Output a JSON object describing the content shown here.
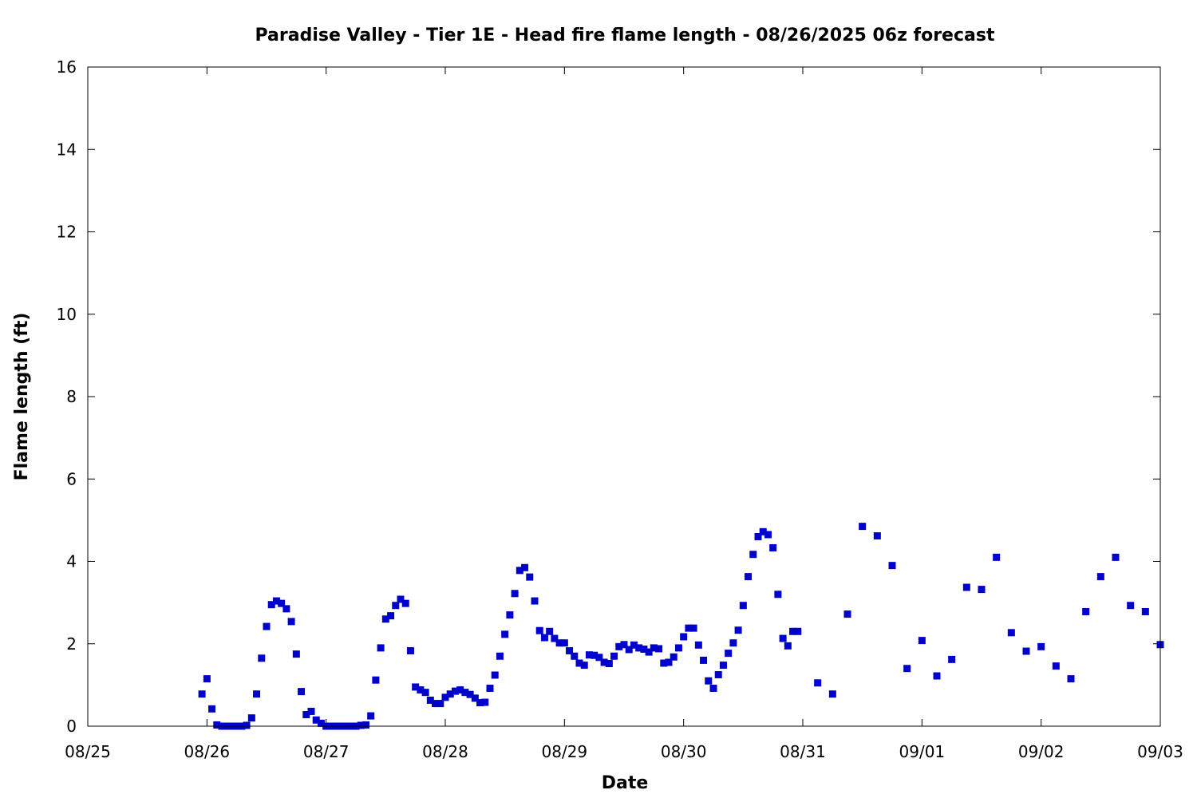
{
  "chart_data": {
    "type": "scatter",
    "title": "Paradise Valley - Tier 1E - Head fire flame length - 08/26/2025 06z forecast",
    "xlabel": "Date",
    "ylabel": "Flame length (ft)",
    "x_unit": "days",
    "xlim": [
      "08/25",
      "09/03"
    ],
    "x_ticks": [
      "08/25",
      "08/26",
      "08/27",
      "08/28",
      "08/29",
      "08/30",
      "08/31",
      "09/01",
      "09/02",
      "09/03"
    ],
    "ylim": [
      0,
      16
    ],
    "y_ticks": [
      "0",
      "2",
      "4",
      "6",
      "8",
      "10",
      "12",
      "14",
      "16"
    ],
    "grid": false,
    "marker_color": "#0000cc",
    "series": [
      {
        "marker": "square",
        "points": [
          [
            "08/25 23:00",
            0.78
          ],
          [
            "08/26 00:00",
            1.15
          ],
          [
            "08/26 01:00",
            0.42
          ],
          [
            "08/26 02:00",
            0.03
          ],
          [
            "08/26 03:00",
            0.0
          ],
          [
            "08/26 04:00",
            0.0
          ],
          [
            "08/26 05:00",
            0.0
          ],
          [
            "08/26 06:00",
            0.0
          ],
          [
            "08/26 07:00",
            0.0
          ],
          [
            "08/26 08:00",
            0.02
          ],
          [
            "08/26 09:00",
            0.2
          ],
          [
            "08/26 10:00",
            0.78
          ],
          [
            "08/26 11:00",
            1.65
          ],
          [
            "08/26 12:00",
            2.42
          ],
          [
            "08/26 13:00",
            2.95
          ],
          [
            "08/26 14:00",
            3.04
          ],
          [
            "08/26 15:00",
            2.98
          ],
          [
            "08/26 16:00",
            2.85
          ],
          [
            "08/26 17:00",
            2.54
          ],
          [
            "08/26 18:00",
            1.75
          ],
          [
            "08/26 19:00",
            0.84
          ],
          [
            "08/26 20:00",
            0.28
          ],
          [
            "08/26 21:00",
            0.36
          ],
          [
            "08/26 22:00",
            0.15
          ],
          [
            "08/26 23:00",
            0.07
          ],
          [
            "08/27 00:00",
            0.0
          ],
          [
            "08/27 01:00",
            0.0
          ],
          [
            "08/27 02:00",
            0.0
          ],
          [
            "08/27 03:00",
            0.0
          ],
          [
            "08/27 04:00",
            0.0
          ],
          [
            "08/27 05:00",
            0.0
          ],
          [
            "08/27 06:00",
            0.0
          ],
          [
            "08/27 07:00",
            0.02
          ],
          [
            "08/27 08:00",
            0.03
          ],
          [
            "08/27 09:00",
            0.25
          ],
          [
            "08/27 10:00",
            1.12
          ],
          [
            "08/27 11:00",
            1.9
          ],
          [
            "08/27 12:00",
            2.6
          ],
          [
            "08/27 13:00",
            2.68
          ],
          [
            "08/27 14:00",
            2.93
          ],
          [
            "08/27 15:00",
            3.08
          ],
          [
            "08/27 16:00",
            2.98
          ],
          [
            "08/27 17:00",
            1.83
          ],
          [
            "08/27 18:00",
            0.95
          ],
          [
            "08/27 19:00",
            0.88
          ],
          [
            "08/27 20:00",
            0.82
          ],
          [
            "08/27 21:00",
            0.63
          ],
          [
            "08/27 22:00",
            0.55
          ],
          [
            "08/27 23:00",
            0.55
          ],
          [
            "08/28 00:00",
            0.7
          ],
          [
            "08/28 01:00",
            0.78
          ],
          [
            "08/28 02:00",
            0.85
          ],
          [
            "08/28 03:00",
            0.88
          ],
          [
            "08/28 04:00",
            0.82
          ],
          [
            "08/28 05:00",
            0.77
          ],
          [
            "08/28 06:00",
            0.68
          ],
          [
            "08/28 07:00",
            0.57
          ],
          [
            "08/28 08:00",
            0.58
          ],
          [
            "08/28 09:00",
            0.92
          ],
          [
            "08/28 10:00",
            1.24
          ],
          [
            "08/28 11:00",
            1.7
          ],
          [
            "08/28 12:00",
            2.23
          ],
          [
            "08/28 13:00",
            2.7
          ],
          [
            "08/28 14:00",
            3.22
          ],
          [
            "08/28 15:00",
            3.78
          ],
          [
            "08/28 16:00",
            3.85
          ],
          [
            "08/28 17:00",
            3.62
          ],
          [
            "08/28 18:00",
            3.04
          ],
          [
            "08/28 19:00",
            2.32
          ],
          [
            "08/28 20:00",
            2.15
          ],
          [
            "08/28 21:00",
            2.3
          ],
          [
            "08/28 22:00",
            2.13
          ],
          [
            "08/28 23:00",
            2.02
          ],
          [
            "08/29 00:00",
            2.02
          ],
          [
            "08/29 01:00",
            1.83
          ],
          [
            "08/29 02:00",
            1.7
          ],
          [
            "08/29 03:00",
            1.53
          ],
          [
            "08/29 04:00",
            1.48
          ],
          [
            "08/29 05:00",
            1.73
          ],
          [
            "08/29 06:00",
            1.72
          ],
          [
            "08/29 07:00",
            1.67
          ],
          [
            "08/29 08:00",
            1.55
          ],
          [
            "08/29 09:00",
            1.52
          ],
          [
            "08/29 10:00",
            1.7
          ],
          [
            "08/29 11:00",
            1.93
          ],
          [
            "08/29 12:00",
            1.98
          ],
          [
            "08/29 13:00",
            1.86
          ],
          [
            "08/29 14:00",
            1.97
          ],
          [
            "08/29 15:00",
            1.9
          ],
          [
            "08/29 16:00",
            1.87
          ],
          [
            "08/29 17:00",
            1.8
          ],
          [
            "08/29 18:00",
            1.9
          ],
          [
            "08/29 19:00",
            1.88
          ],
          [
            "08/29 20:00",
            1.53
          ],
          [
            "08/29 21:00",
            1.55
          ],
          [
            "08/29 22:00",
            1.68
          ],
          [
            "08/29 23:00",
            1.9
          ],
          [
            "08/30 00:00",
            2.17
          ],
          [
            "08/30 01:00",
            2.38
          ],
          [
            "08/30 02:00",
            2.38
          ],
          [
            "08/30 03:00",
            1.97
          ],
          [
            "08/30 04:00",
            1.6
          ],
          [
            "08/30 05:00",
            1.1
          ],
          [
            "08/30 06:00",
            0.92
          ],
          [
            "08/30 07:00",
            1.25
          ],
          [
            "08/30 08:00",
            1.48
          ],
          [
            "08/30 09:00",
            1.77
          ],
          [
            "08/30 10:00",
            2.02
          ],
          [
            "08/30 11:00",
            2.33
          ],
          [
            "08/30 12:00",
            2.93
          ],
          [
            "08/30 13:00",
            3.63
          ],
          [
            "08/30 14:00",
            4.17
          ],
          [
            "08/30 15:00",
            4.6
          ],
          [
            "08/30 16:00",
            4.72
          ],
          [
            "08/30 17:00",
            4.65
          ],
          [
            "08/30 18:00",
            4.33
          ],
          [
            "08/30 19:00",
            3.2
          ],
          [
            "08/30 20:00",
            2.13
          ],
          [
            "08/30 21:00",
            1.95
          ],
          [
            "08/30 22:00",
            2.3
          ],
          [
            "08/30 23:00",
            2.3
          ],
          [
            "08/31 03:00",
            1.05
          ],
          [
            "08/31 06:00",
            0.78
          ],
          [
            "08/31 09:00",
            2.72
          ],
          [
            "08/31 12:00",
            4.85
          ],
          [
            "08/31 15:00",
            4.62
          ],
          [
            "08/31 18:00",
            3.9
          ],
          [
            "08/31 21:00",
            1.4
          ],
          [
            "09/01 00:00",
            2.08
          ],
          [
            "09/01 03:00",
            1.22
          ],
          [
            "09/01 06:00",
            1.62
          ],
          [
            "09/01 09:00",
            3.37
          ],
          [
            "09/01 12:00",
            3.32
          ],
          [
            "09/01 15:00",
            4.1
          ],
          [
            "09/01 18:00",
            2.27
          ],
          [
            "09/01 21:00",
            1.82
          ],
          [
            "09/02 00:00",
            1.93
          ],
          [
            "09/02 03:00",
            1.46
          ],
          [
            "09/02 06:00",
            1.15
          ],
          [
            "09/02 09:00",
            2.78
          ],
          [
            "09/02 12:00",
            3.63
          ],
          [
            "09/02 15:00",
            4.1
          ],
          [
            "09/02 18:00",
            2.93
          ],
          [
            "09/02 21:00",
            2.78
          ],
          [
            "09/03 00:00",
            1.98
          ]
        ]
      }
    ]
  }
}
